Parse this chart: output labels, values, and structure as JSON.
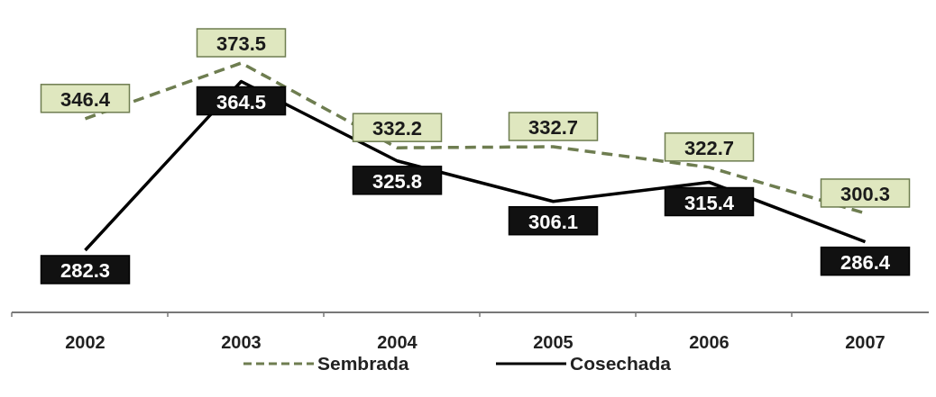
{
  "chart_data": {
    "type": "line",
    "categories": [
      "2002",
      "2003",
      "2004",
      "2005",
      "2006",
      "2007"
    ],
    "series": [
      {
        "name": "Sembrada",
        "color": "#6e7d50",
        "line_style": "dashed",
        "values": [
          346.4,
          373.5,
          332.2,
          332.7,
          322.7,
          300.3
        ]
      },
      {
        "name": "Cosechada",
        "color": "#000000",
        "line_style": "solid",
        "values": [
          282.3,
          364.5,
          325.8,
          306.1,
          315.4,
          286.4
        ]
      }
    ],
    "data_labels": true,
    "legend": "bottom",
    "marker": "none"
  }
}
